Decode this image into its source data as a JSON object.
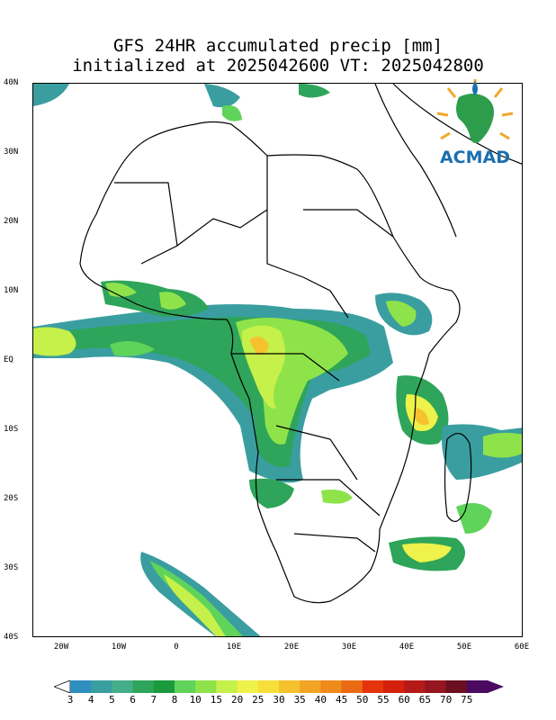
{
  "title": {
    "line1": "GFS 24HR accumulated precip [mm]",
    "line2": "initialized at 2025042600 VT: 2025042800"
  },
  "latitude_labels": [
    "40N",
    "30N",
    "20N",
    "10N",
    "EQ",
    "10S",
    "20S",
    "30S",
    "40S"
  ],
  "longitude_labels": [
    "20W",
    "10W",
    "0",
    "10E",
    "20E",
    "30E",
    "40E",
    "50E",
    "60E"
  ],
  "colorbar": {
    "labels": [
      "3",
      "4",
      "5",
      "6",
      "7",
      "8",
      "10",
      "15",
      "20",
      "25",
      "30",
      "35",
      "40",
      "45",
      "50",
      "55",
      "60",
      "65",
      "70",
      "75"
    ],
    "colors": [
      "#2f8fbf",
      "#3a9ea0",
      "#45ad8a",
      "#2ea55a",
      "#1a9a3c",
      "#5fd35a",
      "#8fe34a",
      "#c6f04a",
      "#eef24a",
      "#f7df3a",
      "#f5c22e",
      "#f2a524",
      "#ef8a1c",
      "#ea6a14",
      "#e5330e",
      "#d5200c",
      "#b51a18",
      "#951520",
      "#6a1020",
      "#4a0a60"
    ]
  },
  "logo": {
    "text": "ACMAD",
    "colors": {
      "text": "#1a6fb0",
      "continent": "#2e9d4b",
      "rays": "#f2a62a"
    }
  },
  "map": {
    "projection": "lat-lon",
    "lon_range": [
      -25,
      60
    ],
    "lat_range": [
      -40,
      40
    ]
  }
}
